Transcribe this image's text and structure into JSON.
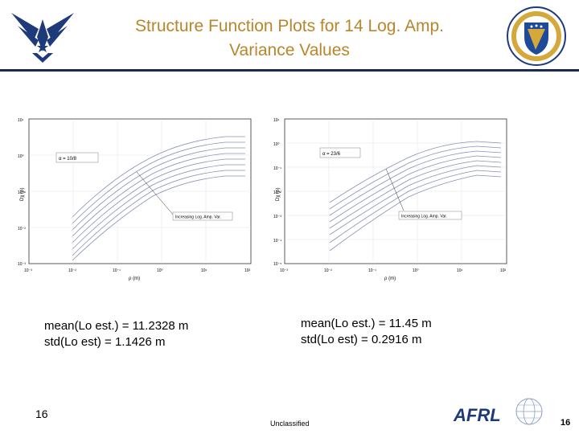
{
  "slide": {
    "title_line1": "Structure Function Plots for 14 Log. Amp.",
    "title_line2": "Variance Values",
    "slide_number_left": "16",
    "slide_number_right": "16",
    "footer_classification": "Unclassified",
    "logo_afrl_text": "AFRL"
  },
  "plots": [
    {
      "alpha_label": "α = 10/8",
      "annotation": "Increasing Log. Amp. Var.",
      "y_axis_label": "Dχ (ρ)",
      "x_axis_label": "ρ (m)",
      "y_ticks": [
        "10¹",
        "10⁰",
        "10⁻¹",
        "10⁻²",
        "10⁻³"
      ],
      "x_ticks": [
        "10⁻³",
        "10⁻²",
        "10⁻¹",
        "10⁰",
        "10¹",
        "10²"
      ],
      "stats_mean": "mean(Lo est.) = 11.2328  m",
      "stats_std": "std(Lo est)  = 1.1426 m"
    },
    {
      "alpha_label": "α = 23/6",
      "annotation": "Increasing Log. Amp. Var.",
      "y_axis_label": "Dχ (ρ)",
      "x_axis_label": "ρ (m)",
      "y_ticks": [
        "10¹",
        "10⁰",
        "10⁻¹",
        "10⁻²",
        "10⁻³",
        "10⁻⁴",
        "10⁻⁵"
      ],
      "x_ticks": [
        "10⁻³",
        "10⁻²",
        "10⁻¹",
        "10⁰",
        "10¹",
        "10²"
      ],
      "stats_mean": "mean(Lo est.) = 11.45  m",
      "stats_std": "std(Lo est)  = 0.2916 m"
    }
  ],
  "colors": {
    "title": "#b8862b",
    "rule": "#1a2a5a",
    "curves": "#8a8fb8"
  }
}
